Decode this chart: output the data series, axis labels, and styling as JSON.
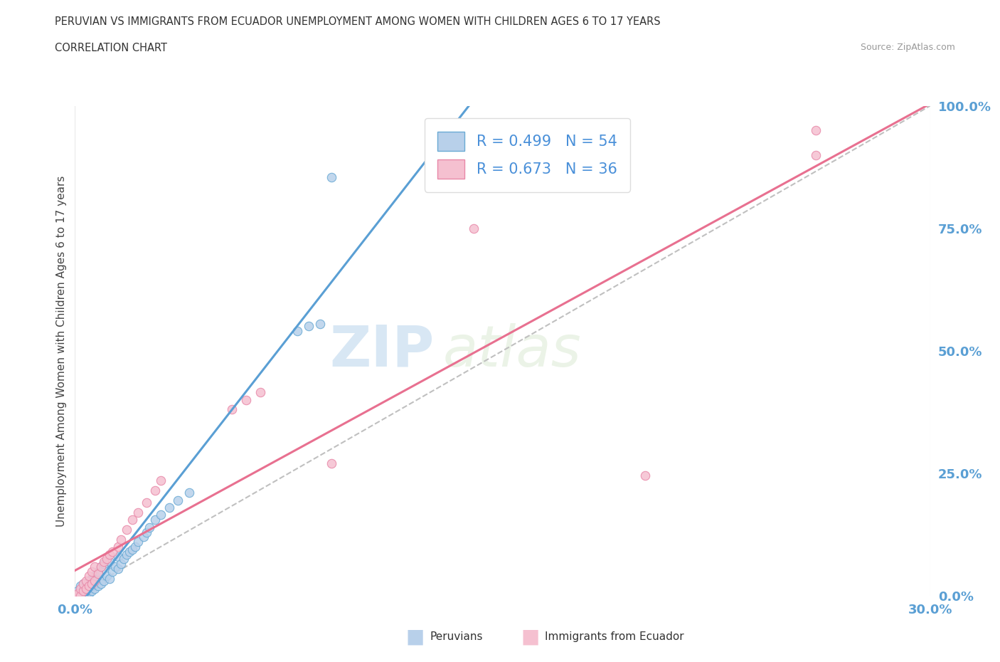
{
  "title": "PERUVIAN VS IMMIGRANTS FROM ECUADOR UNEMPLOYMENT AMONG WOMEN WITH CHILDREN AGES 6 TO 17 YEARS",
  "subtitle": "CORRELATION CHART",
  "source": "Source: ZipAtlas.com",
  "ylabel_left": "Unemployment Among Women with Children Ages 6 to 17 years",
  "xlim": [
    0.0,
    0.3
  ],
  "ylim": [
    0.0,
    1.0
  ],
  "blue_R": 0.499,
  "blue_N": 54,
  "pink_R": 0.673,
  "pink_N": 36,
  "blue_color": "#b8d0ea",
  "pink_color": "#f5c0d0",
  "blue_edge_color": "#6aaad4",
  "pink_edge_color": "#e888a8",
  "blue_line_color": "#5a9fd4",
  "pink_line_color": "#e87090",
  "watermark_zip": "ZIP",
  "watermark_atlas": "atlas",
  "background_color": "#ffffff",
  "grid_color": "#e8e8e8",
  "blue_points_x": [
    0.0,
    0.001,
    0.001,
    0.002,
    0.002,
    0.002,
    0.003,
    0.003,
    0.003,
    0.003,
    0.004,
    0.004,
    0.004,
    0.005,
    0.005,
    0.005,
    0.006,
    0.006,
    0.006,
    0.007,
    0.007,
    0.007,
    0.008,
    0.008,
    0.009,
    0.009,
    0.01,
    0.01,
    0.011,
    0.012,
    0.012,
    0.013,
    0.014,
    0.015,
    0.015,
    0.016,
    0.017,
    0.018,
    0.019,
    0.02,
    0.021,
    0.022,
    0.024,
    0.025,
    0.026,
    0.028,
    0.03,
    0.033,
    0.036,
    0.04,
    0.078,
    0.082,
    0.086,
    0.09
  ],
  "blue_points_y": [
    0.0,
    0.0,
    0.01,
    0.0,
    0.005,
    0.02,
    0.0,
    0.01,
    0.015,
    0.025,
    0.0,
    0.008,
    0.02,
    0.005,
    0.012,
    0.03,
    0.01,
    0.02,
    0.035,
    0.015,
    0.025,
    0.04,
    0.02,
    0.05,
    0.025,
    0.06,
    0.03,
    0.065,
    0.04,
    0.035,
    0.07,
    0.05,
    0.06,
    0.055,
    0.08,
    0.065,
    0.075,
    0.085,
    0.09,
    0.095,
    0.1,
    0.11,
    0.12,
    0.13,
    0.14,
    0.155,
    0.165,
    0.18,
    0.195,
    0.21,
    0.54,
    0.55,
    0.555,
    0.855
  ],
  "pink_points_x": [
    0.0,
    0.001,
    0.002,
    0.002,
    0.003,
    0.003,
    0.004,
    0.004,
    0.005,
    0.005,
    0.006,
    0.006,
    0.007,
    0.007,
    0.008,
    0.009,
    0.01,
    0.011,
    0.012,
    0.013,
    0.015,
    0.016,
    0.018,
    0.02,
    0.022,
    0.025,
    0.028,
    0.03,
    0.055,
    0.06,
    0.065,
    0.09,
    0.14,
    0.2,
    0.26,
    0.26
  ],
  "pink_points_y": [
    0.0,
    0.005,
    0.0,
    0.015,
    0.01,
    0.025,
    0.015,
    0.03,
    0.02,
    0.04,
    0.025,
    0.05,
    0.03,
    0.06,
    0.045,
    0.06,
    0.07,
    0.075,
    0.085,
    0.09,
    0.1,
    0.115,
    0.135,
    0.155,
    0.17,
    0.19,
    0.215,
    0.235,
    0.38,
    0.4,
    0.415,
    0.27,
    0.75,
    0.245,
    0.9,
    0.95
  ]
}
